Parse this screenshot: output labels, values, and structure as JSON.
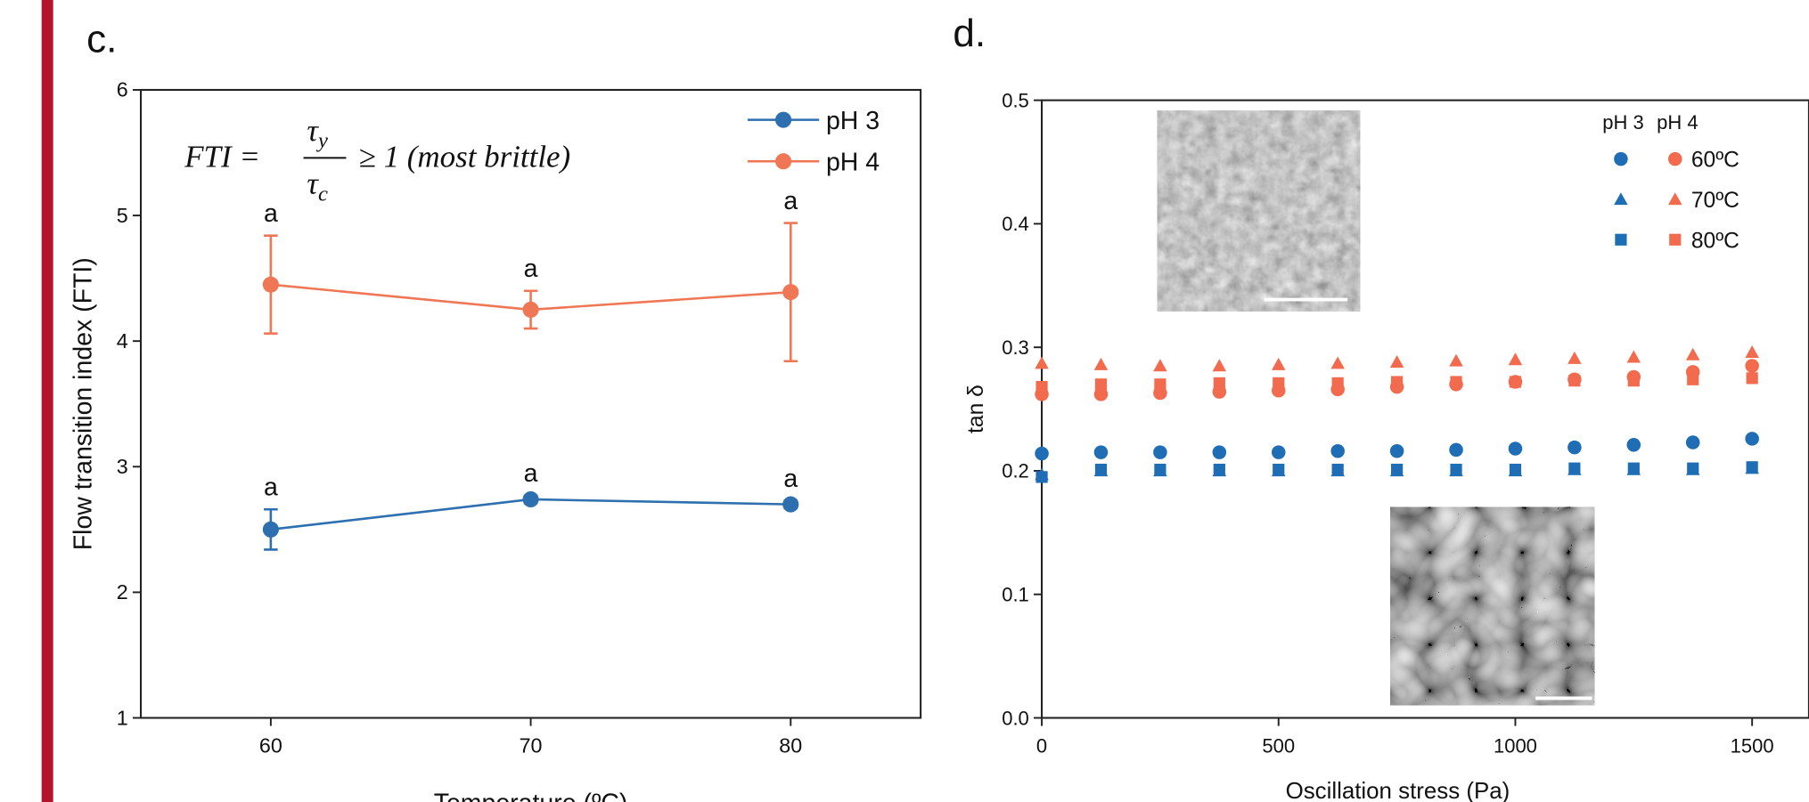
{
  "chart_data": [
    {
      "type": "line",
      "panel": "c.",
      "ylabel": "Flow transition index (FTI)",
      "xlabel": "Temperature (ºC)",
      "x": [
        60,
        70,
        80
      ],
      "xlim": [
        55,
        85
      ],
      "xticks": [
        60,
        70,
        80
      ],
      "ylim": [
        1,
        6
      ],
      "yticks": [
        1,
        2,
        3,
        4,
        5,
        6
      ],
      "equation": {
        "lhs": "FTI =",
        "numerator": [
          "τ",
          "y"
        ],
        "denominator": [
          "τ",
          "c"
        ],
        "rhs": "≥ 1 (most brittle)"
      },
      "series": [
        {
          "name": "pH 3",
          "color": "#2e6fb0",
          "values": [
            2.5,
            2.74,
            2.7
          ],
          "errors": [
            0.16,
            0.03,
            0.03
          ],
          "labels": [
            "a",
            "a",
            "a"
          ]
        },
        {
          "name": "pH 4",
          "color": "#f07755",
          "values": [
            4.45,
            4.25,
            4.39
          ],
          "errors": [
            0.39,
            0.15,
            0.55
          ],
          "labels": [
            "a",
            "a",
            "a"
          ]
        }
      ]
    },
    {
      "type": "scatter",
      "panel": "d.",
      "ylabel": "tan δ",
      "xlabel": "Oscillation stress (Pa)",
      "x": [
        0,
        125,
        250,
        375,
        500,
        625,
        750,
        875,
        1000,
        1125,
        1250,
        1375,
        1500
      ],
      "xlim": [
        0,
        1620
      ],
      "xticks": [
        0,
        500,
        1000,
        1500
      ],
      "ylim": [
        0,
        0.5
      ],
      "yticks": [
        {
          "value": 0,
          "label": "0.0"
        },
        0.1,
        0.2,
        0.3,
        0.4,
        0.5
      ],
      "legend_labels": [
        "60ºC",
        "70ºC",
        "80ºC"
      ],
      "groups": [
        {
          "name": "pH 3",
          "color": "#1f6db5",
          "series": [
            {
              "marker": "circle",
              "values": [
                0.214,
                0.215,
                0.215,
                0.215,
                0.215,
                0.216,
                0.216,
                0.217,
                0.218,
                0.219,
                0.221,
                0.223,
                0.226
              ]
            },
            {
              "marker": "triangle",
              "values": [
                0.197,
                0.2,
                0.2,
                0.2,
                0.2,
                0.2,
                0.2,
                0.2,
                0.2,
                0.201,
                0.201,
                0.201,
                0.202
              ]
            },
            {
              "marker": "square",
              "values": [
                0.195,
                0.201,
                0.201,
                0.201,
                0.201,
                0.201,
                0.201,
                0.201,
                0.201,
                0.202,
                0.202,
                0.202,
                0.203
              ]
            }
          ]
        },
        {
          "name": "pH 4",
          "color": "#f26b4f",
          "series": [
            {
              "marker": "circle",
              "values": [
                0.262,
                0.262,
                0.263,
                0.264,
                0.265,
                0.266,
                0.268,
                0.27,
                0.272,
                0.274,
                0.276,
                0.28,
                0.285
              ]
            },
            {
              "marker": "triangle",
              "values": [
                0.287,
                0.286,
                0.285,
                0.285,
                0.286,
                0.287,
                0.288,
                0.289,
                0.29,
                0.291,
                0.292,
                0.294,
                0.296
              ]
            },
            {
              "marker": "square",
              "values": [
                0.268,
                0.27,
                0.27,
                0.271,
                0.271,
                0.271,
                0.272,
                0.272,
                0.272,
                0.273,
                0.273,
                0.274,
                0.275
              ]
            }
          ]
        }
      ]
    }
  ]
}
